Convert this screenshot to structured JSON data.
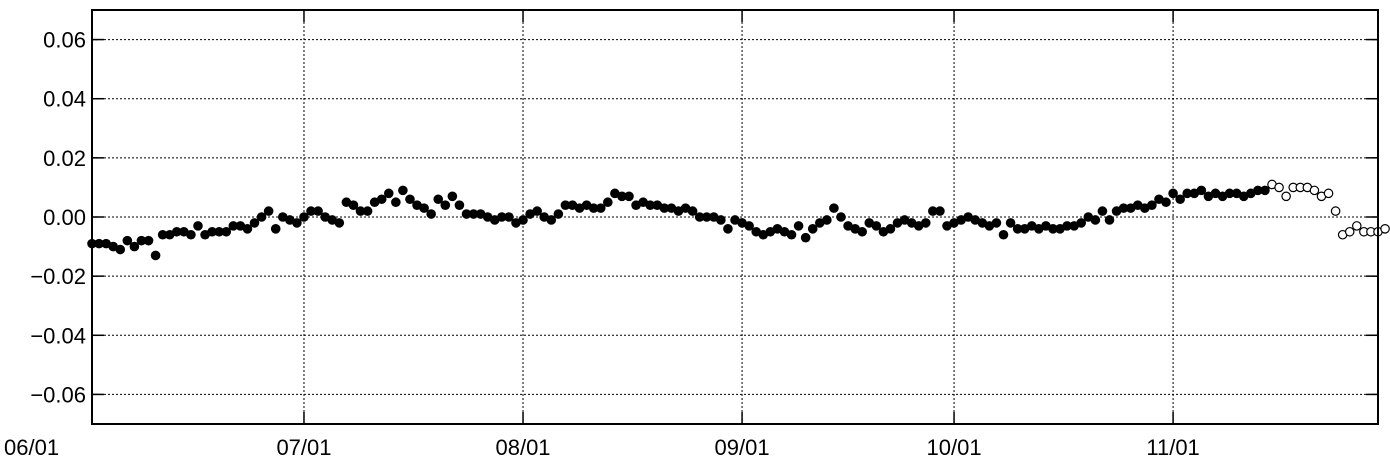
{
  "chart_data": {
    "type": "scatter",
    "title": "",
    "xlabel": "",
    "ylabel": "",
    "x_start": "2023-06-01",
    "xlim": [
      "2023-06-01",
      "2023-11-30"
    ],
    "ylim": [
      -0.07,
      0.07
    ],
    "grid": true,
    "x_ticks": [
      {
        "date": "2023-06-01",
        "label": "06/01"
      },
      {
        "date": "2023-07-01",
        "label": "07/01"
      },
      {
        "date": "2023-08-01",
        "label": "08/01"
      },
      {
        "date": "2023-09-01",
        "label": "09/01"
      },
      {
        "date": "2023-10-01",
        "label": "10/01"
      },
      {
        "date": "2023-11-01",
        "label": "11/01"
      }
    ],
    "y_ticks": [
      {
        "value": 0.06,
        "label": "0.06"
      },
      {
        "value": 0.04,
        "label": "0.04"
      },
      {
        "value": 0.02,
        "label": "0.02"
      },
      {
        "value": 0.0,
        "label": "0.00"
      },
      {
        "value": -0.02,
        "label": "−0.02"
      },
      {
        "value": -0.04,
        "label": "−0.04"
      },
      {
        "value": -0.06,
        "label": "−0.06"
      }
    ],
    "series": [
      {
        "marker": "filled",
        "color": "#000000",
        "y": [
          -0.009,
          -0.009,
          -0.009,
          -0.01,
          -0.011,
          -0.008,
          -0.01,
          -0.008,
          -0.008,
          -0.013,
          -0.006,
          -0.006,
          -0.005,
          -0.005,
          -0.006,
          -0.003,
          -0.006,
          -0.005,
          -0.005,
          -0.005,
          -0.003,
          -0.003,
          -0.004,
          -0.002,
          0.0,
          0.002,
          -0.004,
          0.0,
          -0.001,
          -0.002,
          0.0,
          0.002,
          0.002,
          0.0,
          -0.001,
          -0.002,
          0.005,
          0.004,
          0.002,
          0.002,
          0.005,
          0.006,
          0.008,
          0.005,
          0.009,
          0.006,
          0.004,
          0.003,
          0.001,
          0.006,
          0.004,
          0.007,
          0.004,
          0.001,
          0.001,
          0.001,
          0.0,
          -0.001,
          0.0,
          0.0,
          -0.002,
          -0.001,
          0.001,
          0.002,
          0.0,
          -0.001,
          0.001,
          0.004,
          0.004,
          0.003,
          0.004,
          0.003,
          0.003,
          0.005,
          0.008,
          0.007,
          0.007,
          0.004,
          0.005,
          0.004,
          0.004,
          0.003,
          0.003,
          0.002,
          0.003,
          0.002,
          0.0,
          0.0,
          0.0,
          -0.001,
          -0.004,
          -0.001,
          -0.002,
          -0.003,
          -0.005,
          -0.006,
          -0.005,
          -0.004,
          -0.005,
          -0.006,
          -0.003,
          -0.007,
          -0.004,
          -0.002,
          -0.001,
          0.003,
          0.0,
          -0.003,
          -0.004,
          -0.005,
          -0.002,
          -0.003,
          -0.005,
          -0.004,
          -0.002,
          -0.001,
          -0.002,
          -0.003,
          -0.002,
          0.002,
          0.002,
          -0.003,
          -0.002,
          -0.001,
          0.0,
          -0.001,
          -0.002,
          -0.003,
          -0.002,
          -0.006,
          -0.002,
          -0.004,
          -0.004,
          -0.003,
          -0.004,
          -0.003,
          -0.004,
          -0.004,
          -0.003,
          -0.003,
          -0.002,
          0.0,
          -0.001,
          0.002,
          -0.001,
          0.002,
          0.003,
          0.003,
          0.004,
          0.003,
          0.004,
          0.006,
          0.005,
          0.008,
          0.006,
          0.008,
          0.008,
          0.009,
          0.007,
          0.008,
          0.007,
          0.008,
          0.008,
          0.007,
          0.008,
          0.009,
          0.009
        ]
      },
      {
        "marker": "open",
        "color": "#000000",
        "y": [
          0.011,
          0.01,
          0.007,
          0.01,
          0.01,
          0.01,
          0.009,
          0.007,
          0.008,
          0.002,
          -0.006,
          -0.005,
          -0.003,
          -0.005,
          -0.005,
          -0.005,
          -0.004
        ]
      }
    ]
  }
}
